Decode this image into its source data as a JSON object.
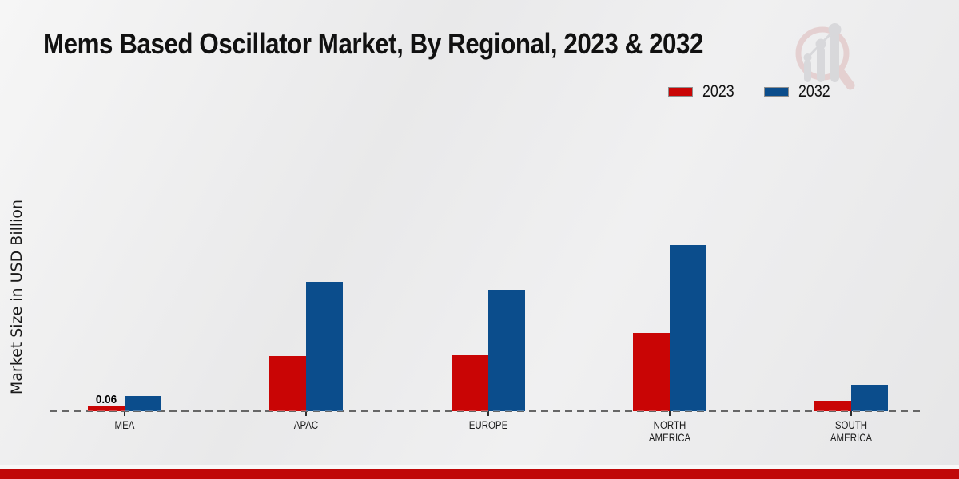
{
  "title": "Mems Based Oscillator Market, By Regional, 2023 & 2032",
  "y_axis_label": "Market Size in USD Billion",
  "legend": {
    "items": [
      {
        "label": "2023",
        "color": "#c90505"
      },
      {
        "label": "2032",
        "color": "#0b4d8c"
      }
    ]
  },
  "chart_data": {
    "type": "bar",
    "title": "Mems Based Oscillator Market, By Regional, 2023 & 2032",
    "ylabel": "Market Size in USD Billion",
    "xlabel": "",
    "categories": [
      "MEA",
      "APAC",
      "EUROPE",
      "NORTH AMERICA",
      "SOUTH AMERICA"
    ],
    "series": [
      {
        "name": "2023",
        "color": "#c90505",
        "values": [
          0.06,
          0.69,
          0.7,
          0.98,
          0.13
        ]
      },
      {
        "name": "2032",
        "color": "#0b4d8c",
        "values": [
          0.19,
          1.62,
          1.52,
          2.08,
          0.33
        ]
      }
    ],
    "bar_labels": [
      {
        "category": "MEA",
        "series": "2023",
        "text": "0.06"
      }
    ],
    "ylim": [
      0,
      2.3
    ],
    "grid": false,
    "baseline_style": "dashed",
    "legend_position": "top-right"
  },
  "colors": {
    "background": "#ebebec",
    "footer_bar": "#c00808",
    "baseline": "#2d2d2d",
    "logo_pink": "#ddb9b9",
    "logo_gray": "#c7c7cb"
  },
  "footer": {
    "bar_color": "#c00808"
  },
  "logo": {
    "name": "market-research-magnifier-logo"
  }
}
